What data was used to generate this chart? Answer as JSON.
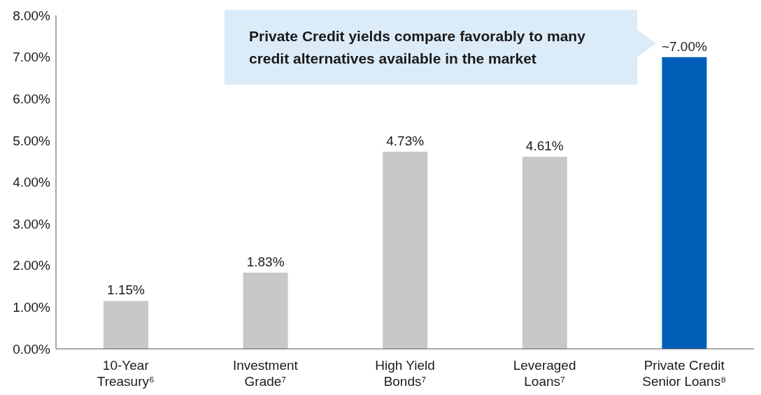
{
  "chart_data": {
    "type": "bar",
    "categories": [
      "10-Year Treasury⁶",
      "Investment Grade⁷",
      "High Yield Bonds⁷",
      "Leveraged Loans⁷",
      "Private Credit Senior Loans⁸"
    ],
    "values": [
      1.15,
      1.83,
      4.73,
      4.61,
      7.0
    ],
    "colors": [
      "#c8c8c8",
      "#c8c8c8",
      "#c8c8c8",
      "#c8c8c8",
      "#005eb8"
    ],
    "value_labels": [
      "1.15%",
      "1.83%",
      "4.73%",
      "4.61%",
      "~7.00%"
    ],
    "ylim": [
      0,
      8
    ],
    "yticks": [
      {
        "value": 0,
        "label": "0.00%"
      },
      {
        "value": 1,
        "label": "1.00%"
      },
      {
        "value": 2,
        "label": "2.00%"
      },
      {
        "value": 3,
        "label": "3.00%"
      },
      {
        "value": 4,
        "label": "4.00%"
      },
      {
        "value": 5,
        "label": "5.00%"
      },
      {
        "value": 6,
        "label": "6.00%"
      },
      {
        "value": 7,
        "label": "7.00%"
      },
      {
        "value": 8,
        "label": "8.00%"
      }
    ],
    "annotations": [
      "Private Credit yields compare favorably to many credit alternatives available in the market"
    ],
    "grid": false,
    "legend": false
  }
}
